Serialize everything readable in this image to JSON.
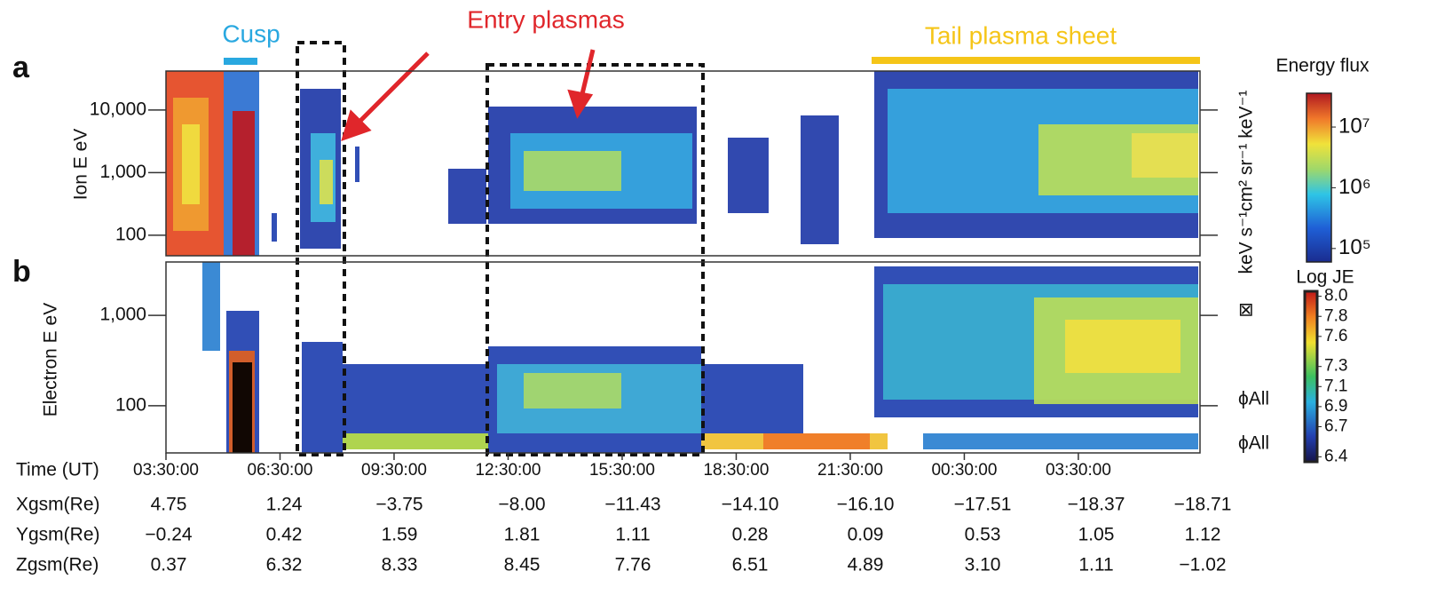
{
  "chart_data": [
    {
      "type": "spectrogram",
      "panel_label": "a",
      "y_label": "Ion E eV",
      "log_y": true,
      "ylim": [
        47,
        42000
      ],
      "yticks": [
        100,
        {
          "value": 1000,
          "label": "1,000"
        },
        {
          "value": 10000,
          "label": "10,000"
        }
      ],
      "xlim": [
        0,
        27.2
      ],
      "colorbar": {
        "title": "Energy flux",
        "unit": "keV s⁻¹cm² sr⁻¹ keV⁻¹",
        "log": true,
        "lim": [
          60000,
          36000000
        ],
        "ticks": [
          {
            "value": 10000000,
            "label": "10⁷"
          },
          {
            "value": 1000000,
            "label": "10⁶"
          },
          {
            "value": 100000,
            "label": "10⁵"
          }
        ]
      },
      "annotations": {
        "cusp": "Cusp",
        "entry": "Entry plasmas",
        "tail": "Tail plasma sheet"
      }
    },
    {
      "type": "spectrogram",
      "panel_label": "b",
      "y_label": "Electron E eV",
      "log_y": true,
      "ylim": [
        30,
        3900
      ],
      "yticks": [
        100,
        {
          "value": 1000,
          "label": "1,000"
        }
      ],
      "x_label": "Time  (UT)",
      "xlim": [
        0,
        27.2
      ],
      "xticks": [
        {
          "value": 0,
          "label": "03:30:00"
        },
        {
          "value": 3,
          "label": "06:30:00"
        },
        {
          "value": 6,
          "label": "09:30:00"
        },
        {
          "value": 9,
          "label": "12:30:00"
        },
        {
          "value": 12,
          "label": "15:30:00"
        },
        {
          "value": 15,
          "label": "18:30:00"
        },
        {
          "value": 18,
          "label": "21:30:00"
        },
        {
          "value": 21,
          "label": "00:30:00"
        },
        {
          "value": 24,
          "label": "03:30:00"
        }
      ],
      "colorbar": {
        "title": "Log JE",
        "log": false,
        "lim": [
          6.35,
          8.05
        ],
        "ticks": [
          {
            "value": 8,
            "label": "8.0"
          },
          7.8,
          7.6,
          7.3,
          7.1,
          6.9,
          6.7,
          6.4
        ]
      },
      "side_labels": [
        "⊠",
        "ϕAll",
        "ϕAll"
      ]
    }
  ],
  "ephemeris": {
    "rows": [
      {
        "label": "Xgsm(Re)",
        "values": [
          "4.75",
          "1.24",
          "−3.75",
          "−8.00",
          "−11.43",
          "−14.10",
          "−16.10",
          "−17.51",
          "−18.37",
          "−18.71"
        ]
      },
      {
        "label": "Ygsm(Re)",
        "values": [
          "−0.24",
          "0.42",
          "1.59",
          "1.81",
          "1.11",
          "0.28",
          "0.09",
          "0.53",
          "1.05",
          "1.12"
        ]
      },
      {
        "label": "Zgsm(Re)",
        "values": [
          "0.37",
          "6.32",
          "8.33",
          "8.45",
          "7.76",
          "6.51",
          "4.89",
          "3.10",
          "1.11",
          "−1.02"
        ]
      }
    ]
  }
}
